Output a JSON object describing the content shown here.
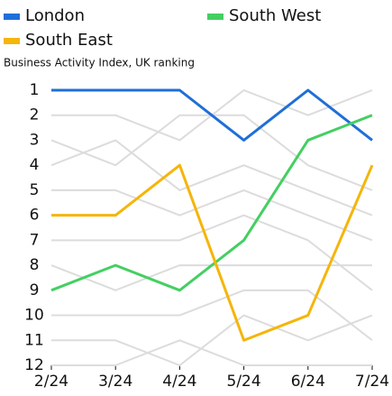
{
  "chart_data": {
    "type": "line",
    "subtitle": "Business Activity Index, UK ranking",
    "categories": [
      "2/24",
      "3/24",
      "4/24",
      "5/24",
      "6/24",
      "7/24"
    ],
    "ylim": [
      1,
      12
    ],
    "y_inverted": true,
    "yticks": [
      1,
      2,
      3,
      4,
      5,
      6,
      7,
      8,
      9,
      10,
      11,
      12
    ],
    "series": [
      {
        "color": "#dcdcdc",
        "values": [
          2,
          2,
          3,
          1,
          2,
          1
        ]
      },
      {
        "color": "#dcdcdc",
        "values": [
          3,
          4,
          2,
          2,
          4,
          5
        ]
      },
      {
        "color": "#dcdcdc",
        "values": [
          4,
          3,
          5,
          4,
          5,
          6
        ]
      },
      {
        "color": "#dcdcdc",
        "values": [
          5,
          5,
          6,
          5,
          6,
          7
        ]
      },
      {
        "color": "#dcdcdc",
        "values": [
          7,
          7,
          7,
          6,
          7,
          9
        ]
      },
      {
        "color": "#dcdcdc",
        "values": [
          8,
          9,
          8,
          8,
          8,
          8
        ]
      },
      {
        "color": "#dcdcdc",
        "values": [
          10,
          10,
          10,
          9,
          9,
          11
        ]
      },
      {
        "color": "#dcdcdc",
        "values": [
          11,
          11,
          12,
          10,
          11,
          10
        ]
      },
      {
        "color": "#dcdcdc",
        "values": [
          12,
          12,
          11,
          12,
          12,
          12
        ]
      },
      {
        "name": "London",
        "color": "#1f6fd8",
        "values": [
          1,
          1,
          1,
          3,
          1,
          3
        ]
      },
      {
        "name": "South West",
        "color": "#44cf62",
        "values": [
          9,
          8,
          9,
          7,
          3,
          2
        ]
      },
      {
        "name": "South East",
        "color": "#f5b50a",
        "values": [
          6,
          6,
          4,
          11,
          10,
          4
        ]
      }
    ]
  }
}
